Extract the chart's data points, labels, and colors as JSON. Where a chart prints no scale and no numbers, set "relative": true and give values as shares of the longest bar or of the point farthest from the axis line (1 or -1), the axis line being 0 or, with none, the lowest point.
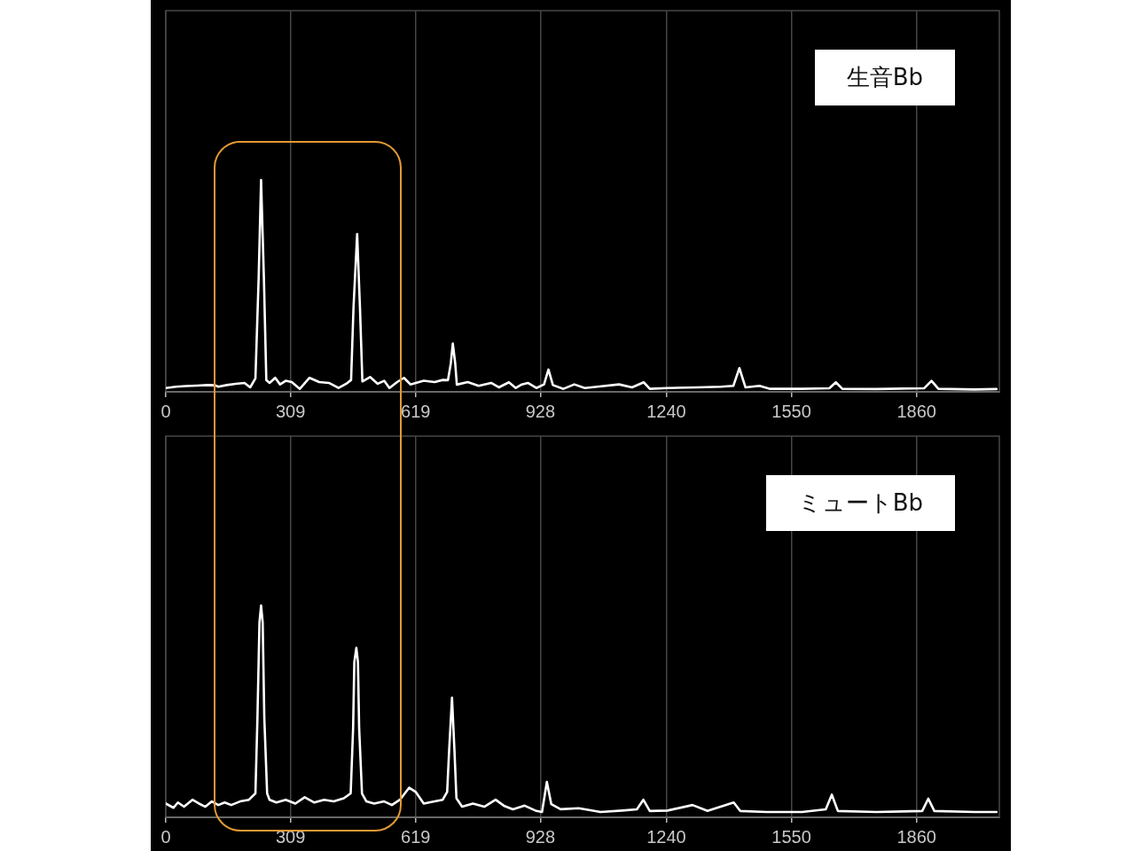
{
  "chart_data": [
    {
      "type": "line",
      "title": "生音Bb",
      "relative": true,
      "grid": "x",
      "marker": "none",
      "line_style": "solid",
      "xlim": [
        0,
        2065
      ],
      "xticks": [
        0,
        309,
        619,
        928,
        1240,
        1550,
        1860
      ],
      "series": [
        {
          "color": "#ffffff",
          "x": [
            0,
            25,
            50,
            77,
            103,
            122,
            130,
            151,
            173,
            195,
            209,
            222,
            230,
            236,
            243,
            249,
            257,
            271,
            283,
            297,
            312,
            332,
            356,
            380,
            404,
            428,
            447,
            459,
            465,
            474,
            481,
            487,
            506,
            525,
            541,
            554,
            573,
            590,
            606,
            639,
            666,
            686,
            699,
            706,
            711,
            717,
            721,
            748,
            775,
            806,
            825,
            850,
            867,
            882,
            897,
            918,
            937,
            948,
            959,
            985,
            1012,
            1038,
            1069,
            1123,
            1155,
            1184,
            1199,
            1243,
            1317,
            1376,
            1406,
            1421,
            1436,
            1471,
            1497,
            1576,
            1644,
            1660,
            1676,
            1760,
            1879,
            1897,
            1914,
            2003,
            2058
          ],
          "values": [
            0.018,
            0.024,
            0.027,
            0.029,
            0.032,
            0.031,
            0.024,
            0.032,
            0.038,
            0.042,
            0.021,
            0.063,
            0.537,
            1,
            0.537,
            0.055,
            0.042,
            0.066,
            0.035,
            0.052,
            0.046,
            0.014,
            0.066,
            0.046,
            0.042,
            0.018,
            0.038,
            0.056,
            0.398,
            0.745,
            0.398,
            0.049,
            0.07,
            0.038,
            0.052,
            0.018,
            0.046,
            0.066,
            0.035,
            0.052,
            0.046,
            0.056,
            0.055,
            0.134,
            0.228,
            0.134,
            0.034,
            0.046,
            0.028,
            0.042,
            0.021,
            0.045,
            0.018,
            0.035,
            0.042,
            0.018,
            0.035,
            0.105,
            0.032,
            0.014,
            0.035,
            0.018,
            0.024,
            0.035,
            0.021,
            0.045,
            0.014,
            0.018,
            0.021,
            0.024,
            0.028,
            0.112,
            0.021,
            0.028,
            0.014,
            0.014,
            0.017,
            0.045,
            0.014,
            0.013,
            0.017,
            0.052,
            0.014,
            0.011,
            0.013
          ]
        }
      ]
    },
    {
      "type": "line",
      "title": "ミュートBb",
      "relative": true,
      "grid": "x",
      "marker": "none",
      "line_style": "solid",
      "xlim": [
        0,
        2065
      ],
      "xticks": [
        0,
        309,
        619,
        928,
        1240,
        1550,
        1860
      ],
      "series": [
        {
          "color": "#ffffff",
          "x": [
            0,
            19,
            30,
            45,
            66,
            82,
            98,
            114,
            130,
            146,
            162,
            184,
            206,
            222,
            227,
            232,
            236,
            240,
            244,
            251,
            257,
            274,
            297,
            321,
            344,
            368,
            392,
            416,
            441,
            458,
            464,
            467,
            472,
            476,
            479,
            486,
            497,
            516,
            541,
            560,
            580,
            603,
            619,
            639,
            666,
            686,
            697,
            702,
            709,
            715,
            720,
            734,
            761,
            789,
            817,
            839,
            860,
            889,
            918,
            932,
            944,
            955,
            978,
            1023,
            1077,
            1131,
            1167,
            1183,
            1199,
            1243,
            1305,
            1342,
            1407,
            1423,
            1488,
            1576,
            1635,
            1650,
            1665,
            1760,
            1874,
            1889,
            1904,
            2003,
            2058
          ],
          "values": [
            0.065,
            0.045,
            0.07,
            0.05,
            0.083,
            0.065,
            0.05,
            0.075,
            0.058,
            0.07,
            0.058,
            0.075,
            0.083,
            0.113,
            0.47,
            0.92,
            1,
            0.92,
            0.47,
            0.113,
            0.083,
            0.07,
            0.083,
            0.065,
            0.095,
            0.07,
            0.083,
            0.075,
            0.09,
            0.113,
            0.42,
            0.733,
            0.8,
            0.733,
            0.42,
            0.113,
            0.075,
            0.065,
            0.075,
            0.058,
            0.083,
            0.14,
            0.12,
            0.065,
            0.075,
            0.083,
            0.12,
            0.32,
            0.565,
            0.32,
            0.09,
            0.05,
            0.065,
            0.05,
            0.083,
            0.053,
            0.038,
            0.055,
            0.03,
            0.025,
            0.167,
            0.062,
            0.038,
            0.043,
            0.025,
            0.032,
            0.038,
            0.083,
            0.03,
            0.032,
            0.058,
            0.03,
            0.07,
            0.03,
            0.025,
            0.025,
            0.038,
            0.107,
            0.03,
            0.025,
            0.03,
            0.088,
            0.03,
            0.025,
            0.025
          ]
        }
      ]
    }
  ]
}
